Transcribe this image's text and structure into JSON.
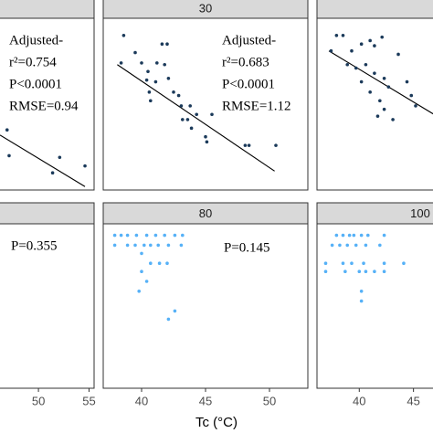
{
  "chart_data": {
    "type": "scatter",
    "xlabel": "Tc (°C)",
    "panels": [
      {
        "strip": null,
        "color": "#1b3a5a",
        "xlim": [
          46.2,
          55.5
        ],
        "ylim": [
          0,
          10
        ],
        "x": [
          46.9,
          47.1,
          52.1,
          51.4,
          54.6
        ],
        "y": [
          3.5,
          2.0,
          1.9,
          1.0,
          1.4
        ],
        "fit": {
          "x": [
            46.2,
            54.6
          ],
          "y": [
            3.2,
            0.2
          ]
        },
        "annotations": [
          "Adjusted-",
          "r²=0.754",
          "P<0.0001",
          "RMSE=0.94"
        ]
      },
      {
        "strip": "30",
        "color": "#1b3a5a",
        "xlim": [
          37,
          53
        ],
        "ylim": [
          0,
          10
        ],
        "x": [
          38.6,
          38.4,
          39.5,
          40.0,
          40.5,
          40.4,
          40.6,
          40.7,
          41.1,
          41.2,
          41.6,
          42.0,
          41.8,
          42.1,
          42.5,
          42.9,
          43.1,
          43.2,
          43.6,
          43.9,
          43.8,
          44.3,
          45.0,
          45.1,
          48.1,
          48.4,
          50.5,
          45.5
        ],
        "y": [
          9.0,
          7.4,
          8.0,
          7.4,
          6.9,
          6.4,
          5.7,
          5.2,
          6.3,
          7.4,
          8.5,
          8.5,
          7.3,
          6.5,
          5.7,
          5.5,
          4.9,
          4.1,
          4.1,
          3.6,
          4.9,
          4.4,
          3.1,
          2.8,
          2.6,
          2.6,
          2.6,
          4.4
        ],
        "fit": {
          "x": [
            38.1,
            50.4
          ],
          "y": [
            7.3,
            1.1
          ]
        },
        "annotations": [
          "Adjusted-",
          "r²=0.683",
          "P<0.0001",
          "RMSE=1.12"
        ]
      },
      {
        "strip": null,
        "color": "#1b3a5a",
        "xlim": [
          36.1,
          46.8
        ],
        "ylim": [
          0,
          10
        ],
        "x": [
          37.9,
          38.5,
          37.4,
          39.3,
          40.2,
          41.0,
          41.4,
          42.1,
          38.9,
          39.7,
          40.6,
          41.4,
          42.3,
          40.2,
          41.0,
          41.9,
          42.3,
          41.7,
          42.7,
          43.6,
          44.4,
          44.8,
          45.2,
          43.1
        ],
        "y": [
          9.0,
          9.0,
          8.1,
          8.1,
          8.5,
          8.7,
          8.4,
          8.9,
          7.3,
          7.1,
          7.3,
          6.8,
          6.5,
          6.3,
          5.7,
          5.2,
          4.7,
          4.3,
          6.0,
          7.9,
          6.3,
          5.5,
          4.9,
          4.1
        ],
        "fit": {
          "x": [
            37.2,
            46.9
          ],
          "y": [
            8.1,
            4.4
          ]
        },
        "annotations": []
      },
      {
        "strip": null,
        "color": "#56b1f7",
        "xlim": [
          46.2,
          55.5
        ],
        "ylim": [
          0,
          10
        ],
        "xticks": [
          50,
          55
        ],
        "x": [],
        "y": [],
        "annotations": [
          "P=0.355"
        ]
      },
      {
        "strip": "80",
        "color": "#56b1f7",
        "xlim": [
          37,
          53
        ],
        "ylim": [
          0,
          10
        ],
        "xticks": [
          40,
          45,
          50
        ],
        "x": [
          37.9,
          38.4,
          38.9,
          39.6,
          40.4,
          41.1,
          41.8,
          42.6,
          43.2,
          37.9,
          38.9,
          39.5,
          40.2,
          40.7,
          41.3,
          42.1,
          43.1,
          40.0,
          40.7,
          41.4,
          42.0,
          40.0,
          40.4,
          39.8,
          42.6,
          42.1
        ],
        "y": [
          9.3,
          9.3,
          9.3,
          9.3,
          9.3,
          9.3,
          9.3,
          9.3,
          9.3,
          8.7,
          8.7,
          8.7,
          8.7,
          8.7,
          8.7,
          8.7,
          8.7,
          8.2,
          7.6,
          7.6,
          7.6,
          7.1,
          6.5,
          5.9,
          4.7,
          4.2
        ],
        "annotations": [
          "P=0.145"
        ]
      },
      {
        "strip": "100",
        "color": "#56b1f7",
        "xlim": [
          36.1,
          46.8
        ],
        "ylim": [
          0,
          10
        ],
        "xticks": [
          40,
          45
        ],
        "x": [
          37.9,
          38.5,
          39.1,
          39.5,
          40.2,
          40.8,
          42.3,
          37.5,
          38.2,
          38.9,
          39.7,
          40.6,
          41.9,
          36.9,
          38.5,
          39.3,
          40.4,
          42.3,
          44.1,
          36.9,
          38.7,
          40.0,
          40.6,
          41.4,
          42.3,
          40.2,
          40.2
        ],
        "y": [
          9.3,
          9.3,
          9.3,
          9.3,
          9.3,
          9.3,
          9.3,
          8.7,
          8.7,
          8.7,
          8.7,
          8.7,
          8.7,
          7.6,
          7.6,
          7.6,
          7.6,
          7.6,
          7.6,
          7.1,
          7.1,
          7.1,
          7.1,
          7.1,
          7.1,
          5.9,
          5.3
        ],
        "annotations": []
      }
    ]
  }
}
